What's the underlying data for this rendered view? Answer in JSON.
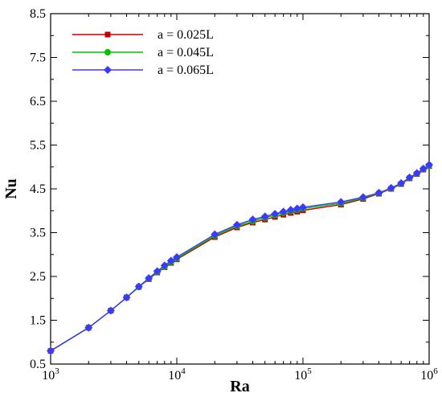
{
  "chart_data": {
    "type": "line",
    "title": "",
    "xlabel": "Ra",
    "ylabel": "Nu",
    "xscale": "log",
    "xlim": [
      1000,
      1000000
    ],
    "ylim": [
      0.5,
      8.5
    ],
    "x_ticks": [
      {
        "value": 1000,
        "base": "10",
        "exp": "3"
      },
      {
        "value": 10000,
        "base": "10",
        "exp": "4"
      },
      {
        "value": 100000,
        "base": "10",
        "exp": "5"
      },
      {
        "value": 1000000,
        "base": "10",
        "exp": "6"
      }
    ],
    "y_ticks": [
      0.5,
      1.5,
      2.5,
      3.5,
      4.5,
      5.5,
      6.5,
      7.5,
      8.5
    ],
    "y_tick_labels": [
      "0.5",
      "1.5",
      "2.5",
      "3.5",
      "4.5",
      "5.5",
      "6.5",
      "7.5",
      "8.5"
    ],
    "legend_position": "top-left",
    "grid": false,
    "x": [
      1000,
      2000,
      3000,
      4000,
      5000,
      6000,
      7000,
      8000,
      9000,
      10000,
      20000,
      30000,
      40000,
      50000,
      60000,
      70000,
      80000,
      90000,
      100000,
      200000,
      300000,
      400000,
      500000,
      600000,
      700000,
      800000,
      900000,
      1000000
    ],
    "series": [
      {
        "name": "a = 0.025L",
        "color": "#c00000",
        "marker": "square",
        "values": [
          0.8,
          1.33,
          1.72,
          2.02,
          2.26,
          2.44,
          2.59,
          2.71,
          2.81,
          2.89,
          3.4,
          3.62,
          3.73,
          3.8,
          3.86,
          3.91,
          3.95,
          3.98,
          4.01,
          4.14,
          4.27,
          4.39,
          4.5,
          4.61,
          4.74,
          4.84,
          4.94,
          5.02
        ]
      },
      {
        "name": "a = 0.045L",
        "color": "#00c000",
        "marker": "circle",
        "values": [
          0.8,
          1.33,
          1.72,
          2.02,
          2.26,
          2.45,
          2.6,
          2.72,
          2.83,
          2.91,
          3.43,
          3.65,
          3.76,
          3.84,
          3.9,
          3.95,
          3.99,
          4.02,
          4.05,
          4.17,
          4.29,
          4.4,
          4.51,
          4.62,
          4.75,
          4.85,
          4.95,
          5.03
        ]
      },
      {
        "name": "a = 0.065L",
        "color": "#3a3aff",
        "marker": "diamond",
        "values": [
          0.8,
          1.33,
          1.72,
          2.02,
          2.27,
          2.46,
          2.62,
          2.75,
          2.86,
          2.94,
          3.46,
          3.68,
          3.8,
          3.87,
          3.93,
          3.98,
          4.02,
          4.05,
          4.08,
          4.2,
          4.31,
          4.41,
          4.52,
          4.63,
          4.76,
          4.86,
          4.96,
          5.05
        ]
      }
    ]
  }
}
